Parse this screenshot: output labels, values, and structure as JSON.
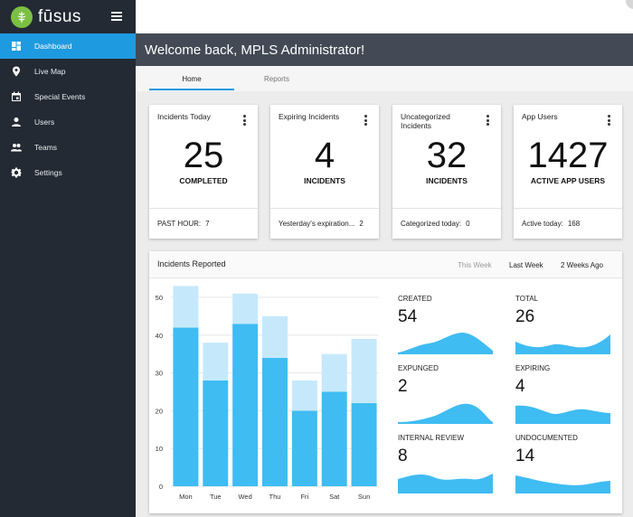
{
  "brand": {
    "name": "fūsus",
    "accent": "#7bc043"
  },
  "sidebar": {
    "items": [
      {
        "label": "Dashboard",
        "icon": "dashboard-icon",
        "active": true
      },
      {
        "label": "Live Map",
        "icon": "map-pin-icon",
        "active": false
      },
      {
        "label": "Special Events",
        "icon": "calendar-icon",
        "active": false
      },
      {
        "label": "Users",
        "icon": "user-icon",
        "active": false
      },
      {
        "label": "Teams",
        "icon": "group-icon",
        "active": false
      },
      {
        "label": "Settings",
        "icon": "gear-icon",
        "active": false
      }
    ]
  },
  "header": {
    "welcome": "Welcome back, MPLS Administrator!"
  },
  "tabs": [
    {
      "label": "Home",
      "active": true
    },
    {
      "label": "Reports",
      "active": false
    }
  ],
  "stats": [
    {
      "title": "Incidents Today",
      "value": "25",
      "subtitle": "COMPLETED",
      "footer_label": "PAST HOUR:",
      "footer_value": "7"
    },
    {
      "title": "Expiring Incidents",
      "value": "4",
      "subtitle": "INCIDENTS",
      "footer_label": "Yesterday's expiration...",
      "footer_value": "2"
    },
    {
      "title": "Uncategorized Incidents",
      "value": "32",
      "subtitle": "INCIDENTS",
      "footer_label": "Categorized today:",
      "footer_value": "0"
    },
    {
      "title": "App Users",
      "value": "1427",
      "subtitle": "ACTIVE APP USERS",
      "footer_label": "Active today:",
      "footer_value": "168"
    }
  ],
  "incidents": {
    "title": "Incidents Reported",
    "ranges": [
      {
        "label": "This Week",
        "active": false
      },
      {
        "label": "Last Week",
        "active": true
      },
      {
        "label": "2 Weeks Ago",
        "active": true
      }
    ],
    "colors": {
      "primary": "#3fbcf2",
      "secondary": "#c5e9fb"
    },
    "summaries": [
      {
        "label": "CREATED",
        "value": "54"
      },
      {
        "label": "TOTAL",
        "value": "26"
      },
      {
        "label": "EXPUNGED",
        "value": "2"
      },
      {
        "label": "EXPIRING",
        "value": "4"
      },
      {
        "label": "INTERNAL REVIEW",
        "value": "8"
      },
      {
        "label": "UNDOCUMENTED",
        "value": "14"
      }
    ]
  },
  "chart_data": {
    "type": "bar",
    "stacked": true,
    "categories": [
      "Mon",
      "Tue",
      "Wed",
      "Thu",
      "Fri",
      "Sat",
      "Sun"
    ],
    "series": [
      {
        "values": [
          42,
          28,
          43,
          34,
          20,
          25,
          22
        ]
      },
      {
        "values": [
          11,
          10,
          8,
          11,
          8,
          10,
          17
        ]
      }
    ],
    "ylim": [
      0,
      50
    ],
    "yticks": [
      0,
      10,
      20,
      30,
      40,
      50
    ],
    "grid": true
  }
}
